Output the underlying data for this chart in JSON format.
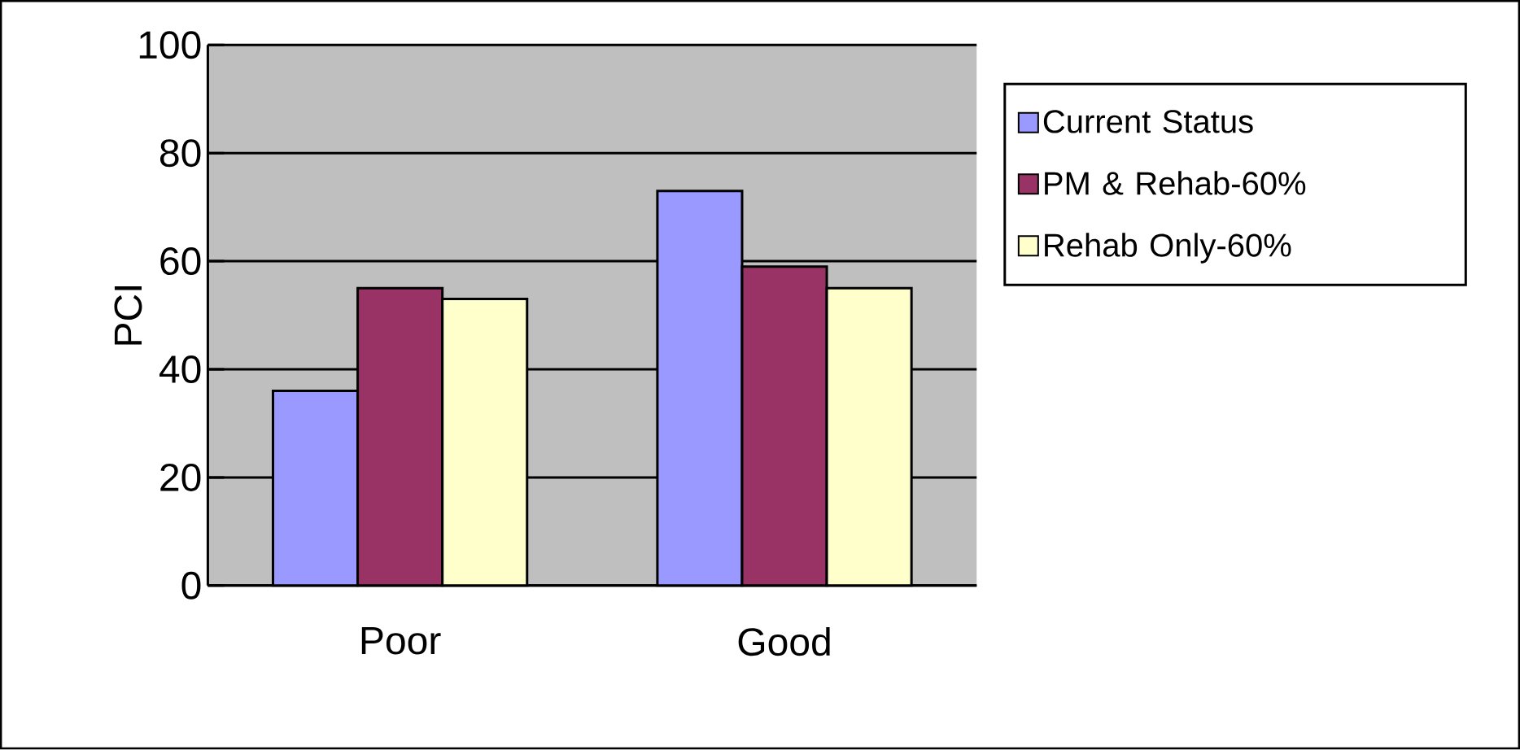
{
  "chart_data": {
    "type": "bar",
    "ylabel": "PCI",
    "categories": [
      "Poor",
      "Good"
    ],
    "series": [
      {
        "name": "Current Status",
        "color": "#9999ff",
        "values": [
          36,
          73
        ]
      },
      {
        "name": "PM & Rehab-60%",
        "color": "#993366",
        "values": [
          55,
          59
        ]
      },
      {
        "name": "Rehab Only-60%",
        "color": "#ffffcc",
        "values": [
          53,
          55
        ]
      }
    ],
    "ylim": [
      0,
      100
    ],
    "yticks": [
      0,
      20,
      40,
      60,
      80,
      100
    ],
    "grid": "y",
    "legend": "right"
  }
}
